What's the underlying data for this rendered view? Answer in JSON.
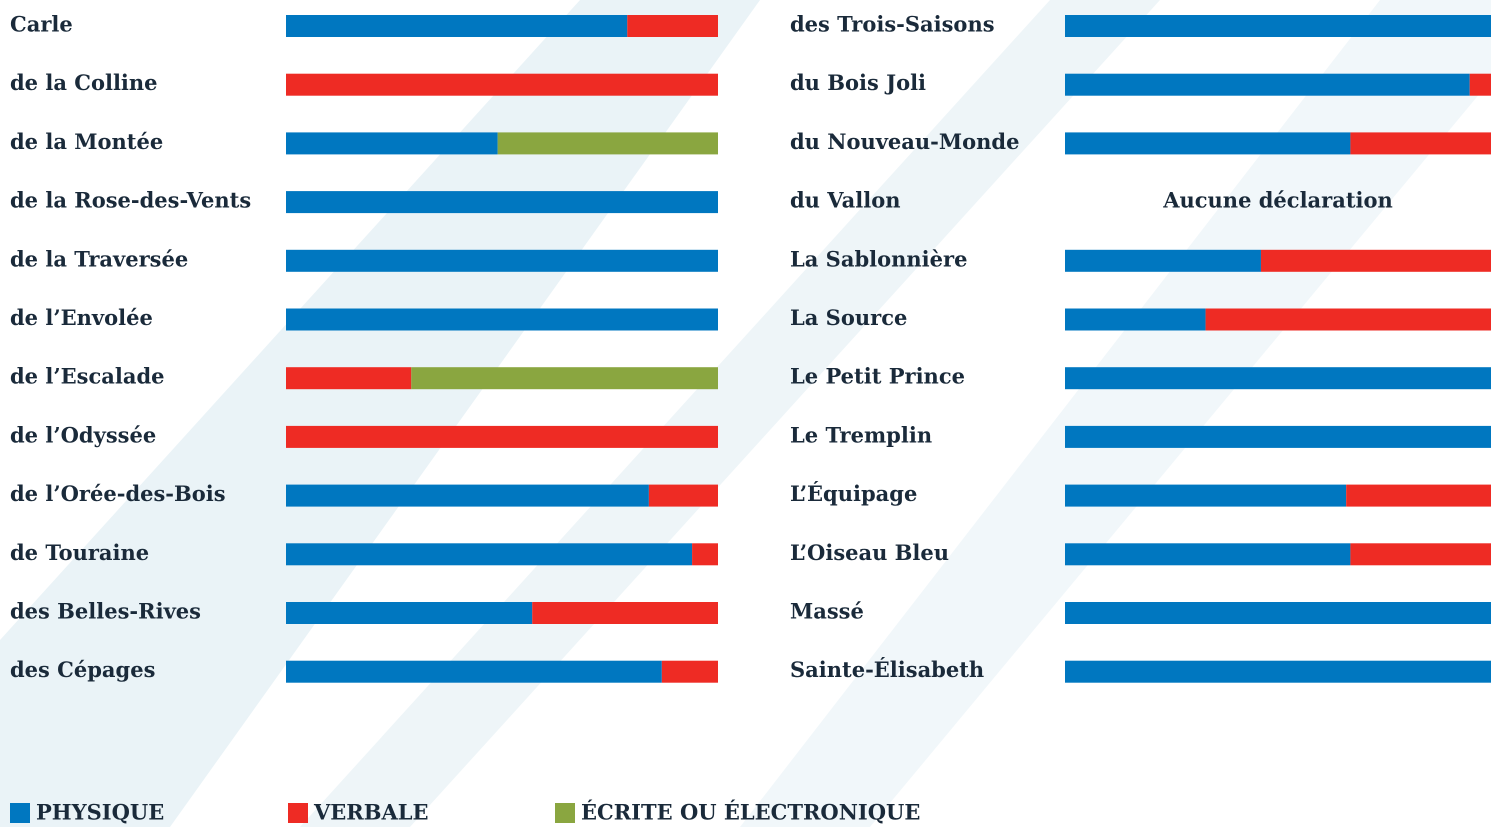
{
  "chart_data": {
    "type": "bar",
    "orientation": "horizontal",
    "stacked": true,
    "categories": [
      "Carle",
      "de la Colline",
      "de la Montée",
      "de la Rose-des-Vents",
      "de la Traversée",
      "de l’Envolée",
      "de l’Escalade",
      "de l’Odyssée",
      "de l’Orée-des-Bois",
      "de Touraine",
      "des Belles-Rives",
      "des Cépages",
      "des Trois-Saisons",
      "du Bois Joli",
      "du Nouveau-Monde",
      "du Vallon",
      "La Sablonnière",
      "La Source",
      "Le Petit Prince",
      "Le Tremplin",
      "L’Équipage",
      "L’Oiseau Bleu",
      "Massé",
      "Sainte-Élisabeth"
    ],
    "series": [
      {
        "name": "PHYSIQUE",
        "color": "#0077c0",
        "values": [
          79,
          0,
          49,
          100,
          100,
          100,
          0,
          0,
          84,
          94,
          57,
          87,
          100,
          95,
          67,
          null,
          46,
          33,
          100,
          100,
          66,
          67,
          100,
          100
        ]
      },
      {
        "name": "VERBALE",
        "color": "#ee2b24",
        "values": [
          21,
          100,
          0,
          0,
          0,
          0,
          29,
          100,
          16,
          6,
          43,
          13,
          0,
          5,
          33,
          null,
          54,
          67,
          0,
          0,
          34,
          33,
          0,
          0
        ]
      },
      {
        "name": "ÉCRITE OU ÉLECTRONIQUE",
        "color": "#8aa640",
        "values": [
          0,
          0,
          51,
          0,
          0,
          0,
          71,
          0,
          0,
          0,
          0,
          0,
          0,
          0,
          0,
          null,
          0,
          0,
          0,
          0,
          0,
          0,
          0,
          0
        ]
      }
    ],
    "annotation": "Aucune déclaration",
    "xlim": [
      0,
      100
    ]
  }
}
